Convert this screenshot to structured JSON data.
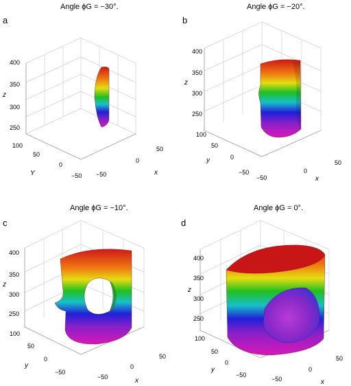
{
  "panels": [
    {
      "letter": "a",
      "title": "Angle ϕG = −30°.",
      "z_label": "z",
      "y_label": "Y",
      "x_label": "x",
      "z_ticks": [
        "400",
        "350",
        "300",
        "250"
      ],
      "y_ticks": [
        "100",
        "50",
        "0",
        "−50"
      ],
      "x_ticks": [
        "50",
        "0",
        "−50"
      ]
    },
    {
      "letter": "b",
      "title": "Angle ϕG = −20°.",
      "z_label": "z",
      "y_label": "y",
      "x_label": "x",
      "z_ticks": [
        "400",
        "350",
        "300",
        "250"
      ],
      "y_ticks": [
        "100",
        "50",
        "0",
        "−50"
      ],
      "x_ticks": [
        "50",
        "0",
        "−50"
      ]
    },
    {
      "letter": "c",
      "title": "Angle ϕG = −10°.",
      "z_label": "z",
      "y_label": "y",
      "x_label": "x",
      "z_ticks": [
        "400",
        "350",
        "300",
        "250"
      ],
      "y_ticks": [
        "100",
        "50",
        "0",
        "−50"
      ],
      "x_ticks": [
        "50",
        "0",
        "−50"
      ]
    },
    {
      "letter": "d",
      "title": "Angle ϕG = 0°.",
      "z_label": "z",
      "y_label": "y",
      "x_label": "x",
      "z_ticks": [
        "400",
        "350",
        "300",
        "250"
      ],
      "y_ticks": [
        "100",
        "50",
        "0",
        "−50"
      ],
      "x_ticks": [
        "50",
        "0",
        "−50"
      ]
    }
  ],
  "colors": {
    "top": "#d01818",
    "orange": "#ee7a10",
    "yellow": "#e6dc10",
    "green": "#20c020",
    "cyan": "#18c0c8",
    "blue": "#2020d8",
    "purple": "#8a20c8",
    "magenta": "#d818b8",
    "grid": "#cfcfcf"
  }
}
